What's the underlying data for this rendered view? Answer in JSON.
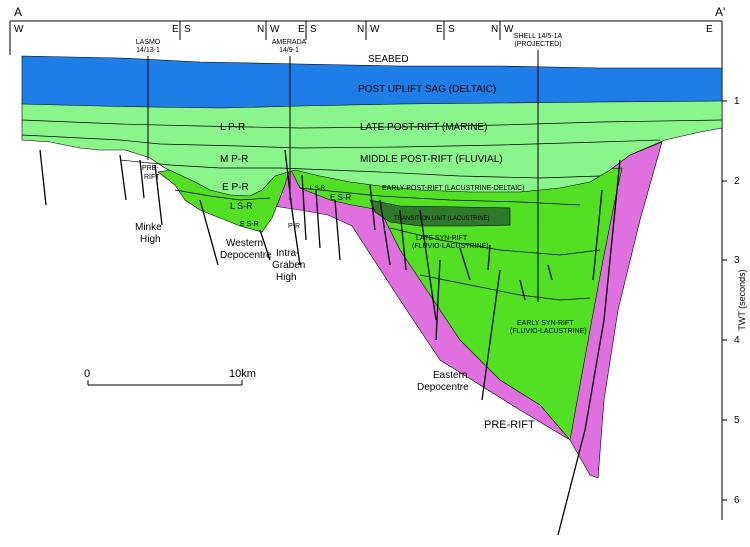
{
  "section_ends": {
    "left": "A",
    "right": "A'"
  },
  "orientation_top": [
    "W",
    "E",
    "S",
    "N",
    "W",
    "E",
    "S",
    "N",
    "W",
    "E",
    "S",
    "N",
    "W",
    "E"
  ],
  "wells": [
    {
      "line1": "LASMO",
      "line2": "14/13-1"
    },
    {
      "line1": "AMERADA",
      "line2": "14/9-1"
    },
    {
      "line1": "SHELL 14/5-1A",
      "line2": "(PROJECTED)"
    }
  ],
  "units": {
    "seabed": "SEABED",
    "post_uplift": "POST UPLIFT SAG (DELTAIC)",
    "late_post_rift": "LATE POST-RIFT (MARINE)",
    "middle_post_rift": "MIDDLE POST-RIFT (FLUVIAL)",
    "early_post_rift": "EARLY POST-RIFT (LACUSTRINE-DELTAIC)",
    "transition": "TRANSITION UNIT (LACUSTRINE)",
    "late_syn_rift_1": "LATE SYN-RIFT",
    "late_syn_rift_2": "(FLUVIO-LACUSTRINE)",
    "early_syn_rift_1": "EARLY SYN-RIFT",
    "early_syn_rift_2": "(FLUVIO-LACUSTRINE)",
    "pre_rift": "PRE-RIFT"
  },
  "abbrev": {
    "lpr": "L P-R",
    "mpr": "M P-R",
    "epr": "E P-R",
    "lsr": "L S-R",
    "esr": "E S-R",
    "pr": "P-R",
    "lsr_small": "L S-R",
    "esr_mid": "E S-R",
    "pre1": "PRE-",
    "pre2": "RIFT"
  },
  "features": {
    "minke1": "Minke",
    "minke2": "High",
    "western1": "Western",
    "western2": "Depocentre",
    "intra1": "Intra-",
    "intra2": "Graben",
    "intra3": "High",
    "eastern1": "Eastern",
    "eastern2": "Depocentre"
  },
  "scale": {
    "zero": "0",
    "ten": "10km"
  },
  "axis": {
    "title": "TWT (seconds)",
    "ticks": [
      "1",
      "2",
      "3",
      "4",
      "5",
      "6"
    ]
  },
  "colors": {
    "water": "#1e7ee8",
    "post_rift": "#8af58a",
    "syn_rift": "#52e022",
    "transition": "#2f7a2a",
    "pre_rift": "#e070e0"
  }
}
